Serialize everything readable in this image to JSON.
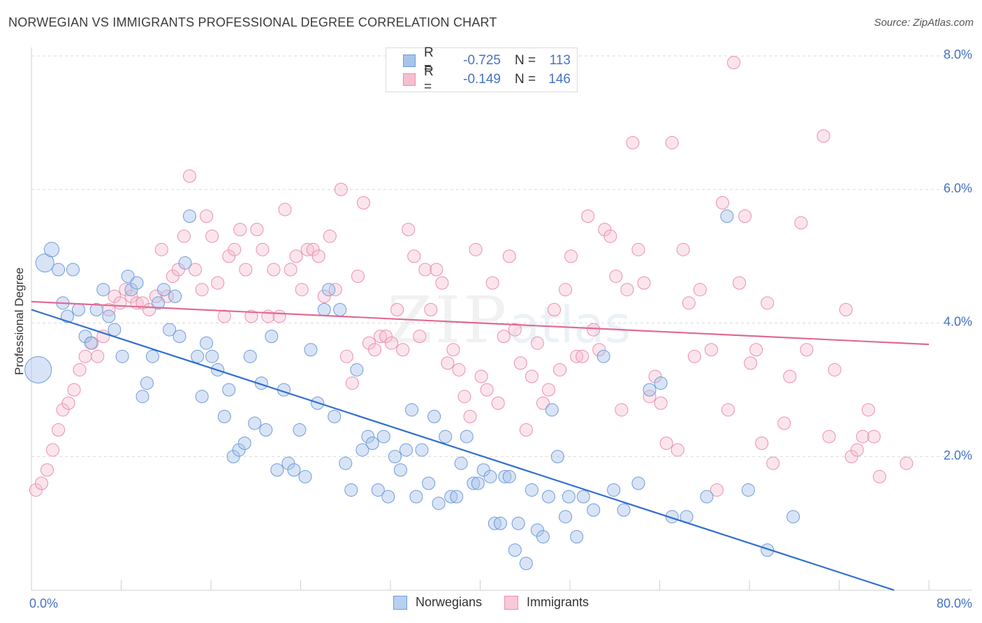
{
  "title": "NORWEGIAN VS IMMIGRANTS PROFESSIONAL DEGREE CORRELATION CHART",
  "source": "Source: ZipAtlas.com",
  "watermark": {
    "main": "ZIP",
    "sub": "atlas"
  },
  "legend_top": [
    {
      "r_label": "R =",
      "r_value": "-0.725",
      "n_label": "N =",
      "n_value": "113",
      "color": "#a9c4eb",
      "border": "#6f9bd8"
    },
    {
      "r_label": "R =",
      "r_value": "-0.149",
      "n_label": "N =",
      "n_value": "146",
      "color": "#f6bfd0",
      "border": "#ea8fae"
    }
  ],
  "legend_bottom": [
    {
      "label": "Norwegians",
      "color": "#b8d0f0",
      "border": "#6f9bd8"
    },
    {
      "label": "Immigrants",
      "color": "#f8c9d8",
      "border": "#ea8fae"
    }
  ],
  "chart_data": {
    "type": "scatter",
    "title": "NORWEGIAN VS IMMIGRANTS PROFESSIONAL DEGREE CORRELATION CHART",
    "xlabel": "",
    "ylabel": "Professional Degree",
    "xlim": [
      0,
      80
    ],
    "ylim": [
      0,
      8
    ],
    "x_tick_labels": [
      {
        "value": 0,
        "label": "0.0%"
      },
      {
        "value": 80,
        "label": "80.0%"
      }
    ],
    "y_tick_labels": [
      {
        "value": 2,
        "label": "2.0%"
      },
      {
        "value": 4,
        "label": "4.0%"
      },
      {
        "value": 6,
        "label": "6.0%"
      },
      {
        "value": 8,
        "label": "8.0%"
      }
    ],
    "series": [
      {
        "name": "Norwegians",
        "color": "#6f9bd8",
        "fill": "rgba(169,196,235,0.45)",
        "trend": {
          "x0": 0,
          "y0": 4.2,
          "x1": 76.9,
          "y1": 0.0,
          "color": "#2f6fd0"
        },
        "points": [
          [
            0.6,
            3.3
          ],
          [
            1.2,
            4.9
          ],
          [
            1.8,
            5.1
          ],
          [
            2.4,
            4.8
          ],
          [
            2.8,
            4.3
          ],
          [
            3.2,
            4.1
          ],
          [
            3.7,
            4.8
          ],
          [
            4.2,
            4.2
          ],
          [
            4.8,
            3.8
          ],
          [
            5.3,
            3.7
          ],
          [
            5.8,
            4.2
          ],
          [
            6.4,
            4.5
          ],
          [
            6.9,
            4.1
          ],
          [
            7.4,
            3.9
          ],
          [
            8.1,
            3.5
          ],
          [
            8.6,
            4.7
          ],
          [
            8.9,
            4.5
          ],
          [
            9.4,
            4.6
          ],
          [
            9.9,
            2.9
          ],
          [
            10.3,
            3.1
          ],
          [
            10.8,
            3.5
          ],
          [
            11.3,
            4.3
          ],
          [
            11.8,
            4.5
          ],
          [
            12.3,
            3.9
          ],
          [
            12.8,
            4.4
          ],
          [
            13.2,
            3.8
          ],
          [
            13.7,
            4.9
          ],
          [
            14.1,
            5.6
          ],
          [
            14.8,
            3.5
          ],
          [
            15.2,
            2.9
          ],
          [
            15.6,
            3.7
          ],
          [
            16.1,
            3.5
          ],
          [
            16.6,
            3.3
          ],
          [
            17.2,
            2.6
          ],
          [
            17.6,
            3.0
          ],
          [
            18.0,
            2.0
          ],
          [
            18.5,
            2.1
          ],
          [
            19.0,
            2.2
          ],
          [
            19.5,
            3.5
          ],
          [
            19.9,
            2.5
          ],
          [
            20.5,
            3.1
          ],
          [
            20.9,
            2.4
          ],
          [
            21.4,
            3.8
          ],
          [
            21.9,
            1.8
          ],
          [
            22.5,
            3.0
          ],
          [
            22.9,
            1.9
          ],
          [
            23.4,
            1.8
          ],
          [
            23.9,
            2.4
          ],
          [
            24.4,
            1.7
          ],
          [
            24.9,
            3.6
          ],
          [
            25.5,
            2.8
          ],
          [
            26.1,
            4.2
          ],
          [
            26.5,
            4.5
          ],
          [
            27.0,
            2.6
          ],
          [
            27.5,
            4.2
          ],
          [
            28.0,
            1.9
          ],
          [
            28.5,
            1.5
          ],
          [
            29.0,
            3.3
          ],
          [
            29.5,
            2.1
          ],
          [
            30.0,
            2.3
          ],
          [
            30.4,
            2.2
          ],
          [
            30.9,
            1.5
          ],
          [
            31.4,
            2.3
          ],
          [
            31.8,
            1.4
          ],
          [
            32.4,
            2.0
          ],
          [
            32.9,
            1.8
          ],
          [
            33.4,
            2.1
          ],
          [
            33.9,
            2.7
          ],
          [
            34.3,
            1.4
          ],
          [
            34.8,
            2.1
          ],
          [
            35.4,
            1.6
          ],
          [
            35.9,
            2.6
          ],
          [
            36.3,
            1.3
          ],
          [
            36.9,
            2.3
          ],
          [
            37.4,
            1.4
          ],
          [
            37.9,
            1.4
          ],
          [
            38.3,
            1.9
          ],
          [
            38.8,
            2.3
          ],
          [
            39.4,
            1.6
          ],
          [
            39.8,
            1.6
          ],
          [
            40.3,
            1.8
          ],
          [
            40.9,
            1.7
          ],
          [
            41.3,
            1.0
          ],
          [
            41.8,
            1.0
          ],
          [
            42.2,
            1.7
          ],
          [
            42.6,
            1.7
          ],
          [
            43.1,
            0.6
          ],
          [
            43.4,
            1.0
          ],
          [
            44.1,
            0.4
          ],
          [
            44.6,
            1.5
          ],
          [
            45.1,
            0.9
          ],
          [
            45.6,
            0.8
          ],
          [
            46.1,
            1.4
          ],
          [
            46.4,
            2.7
          ],
          [
            46.9,
            2.0
          ],
          [
            47.6,
            1.1
          ],
          [
            47.9,
            1.4
          ],
          [
            48.6,
            0.8
          ],
          [
            49.2,
            1.4
          ],
          [
            50.1,
            1.2
          ],
          [
            51.0,
            3.5
          ],
          [
            51.9,
            1.5
          ],
          [
            52.8,
            1.2
          ],
          [
            54.1,
            1.6
          ],
          [
            55.1,
            3.0
          ],
          [
            56.1,
            3.1
          ],
          [
            57.1,
            1.1
          ],
          [
            58.4,
            1.1
          ],
          [
            60.2,
            1.4
          ],
          [
            62.0,
            5.6
          ],
          [
            63.9,
            1.5
          ],
          [
            65.6,
            0.6
          ],
          [
            67.9,
            1.1
          ]
        ]
      },
      {
        "name": "Immigrants",
        "color": "#ea8fae",
        "fill": "rgba(246,191,208,0.40)",
        "trend": {
          "x0": 0,
          "y0": 4.32,
          "x1": 80,
          "y1": 3.68,
          "color": "#e06a92"
        },
        "points": [
          [
            0.4,
            1.5
          ],
          [
            0.9,
            1.6
          ],
          [
            1.4,
            1.8
          ],
          [
            1.9,
            2.1
          ],
          [
            2.4,
            2.4
          ],
          [
            2.8,
            2.7
          ],
          [
            3.3,
            2.8
          ],
          [
            3.8,
            3.0
          ],
          [
            4.3,
            3.3
          ],
          [
            4.8,
            3.5
          ],
          [
            5.4,
            3.7
          ],
          [
            5.9,
            3.5
          ],
          [
            6.4,
            3.8
          ],
          [
            6.9,
            4.2
          ],
          [
            7.4,
            4.4
          ],
          [
            7.9,
            4.3
          ],
          [
            8.4,
            4.5
          ],
          [
            8.9,
            4.4
          ],
          [
            9.4,
            4.3
          ],
          [
            9.9,
            4.3
          ],
          [
            10.5,
            4.2
          ],
          [
            11.1,
            4.4
          ],
          [
            11.6,
            5.1
          ],
          [
            12.1,
            4.4
          ],
          [
            12.6,
            4.7
          ],
          [
            13.1,
            4.8
          ],
          [
            13.6,
            5.3
          ],
          [
            14.1,
            6.2
          ],
          [
            14.6,
            4.8
          ],
          [
            15.2,
            4.5
          ],
          [
            15.6,
            5.6
          ],
          [
            16.1,
            5.3
          ],
          [
            16.6,
            4.6
          ],
          [
            17.2,
            4.1
          ],
          [
            17.6,
            5.0
          ],
          [
            18.1,
            5.1
          ],
          [
            18.6,
            5.4
          ],
          [
            19.1,
            4.8
          ],
          [
            19.6,
            4.1
          ],
          [
            20.1,
            5.4
          ],
          [
            20.6,
            5.1
          ],
          [
            21.1,
            4.1
          ],
          [
            21.6,
            4.8
          ],
          [
            22.1,
            4.1
          ],
          [
            22.6,
            5.7
          ],
          [
            23.1,
            4.8
          ],
          [
            23.6,
            5.0
          ],
          [
            24.1,
            4.5
          ],
          [
            24.6,
            5.1
          ],
          [
            25.1,
            5.1
          ],
          [
            25.6,
            5.0
          ],
          [
            26.1,
            4.4
          ],
          [
            26.6,
            5.3
          ],
          [
            27.1,
            4.5
          ],
          [
            27.6,
            6.0
          ],
          [
            28.1,
            3.5
          ],
          [
            28.6,
            3.1
          ],
          [
            29.1,
            4.7
          ],
          [
            29.6,
            5.8
          ],
          [
            30.1,
            3.7
          ],
          [
            30.6,
            3.6
          ],
          [
            31.1,
            3.8
          ],
          [
            31.6,
            3.8
          ],
          [
            32.1,
            3.7
          ],
          [
            32.6,
            4.2
          ],
          [
            33.1,
            3.6
          ],
          [
            33.6,
            5.4
          ],
          [
            34.1,
            5.0
          ],
          [
            34.6,
            3.8
          ],
          [
            35.1,
            4.8
          ],
          [
            35.6,
            4.2
          ],
          [
            36.1,
            4.8
          ],
          [
            36.6,
            4.6
          ],
          [
            37.1,
            3.4
          ],
          [
            37.6,
            3.6
          ],
          [
            38.1,
            3.3
          ],
          [
            38.6,
            2.9
          ],
          [
            39.1,
            2.6
          ],
          [
            39.6,
            5.1
          ],
          [
            40.1,
            3.2
          ],
          [
            40.6,
            3.0
          ],
          [
            41.1,
            4.6
          ],
          [
            41.6,
            2.8
          ],
          [
            42.1,
            3.8
          ],
          [
            42.6,
            5.0
          ],
          [
            43.1,
            3.9
          ],
          [
            43.6,
            3.4
          ],
          [
            44.1,
            2.4
          ],
          [
            44.6,
            3.2
          ],
          [
            45.1,
            3.7
          ],
          [
            45.6,
            2.8
          ],
          [
            46.1,
            3.0
          ],
          [
            46.6,
            4.2
          ],
          [
            47.1,
            3.3
          ],
          [
            47.6,
            4.5
          ],
          [
            48.1,
            5.0
          ],
          [
            48.6,
            3.5
          ],
          [
            49.1,
            3.5
          ],
          [
            49.6,
            5.6
          ],
          [
            50.1,
            3.9
          ],
          [
            50.6,
            3.6
          ],
          [
            51.1,
            5.4
          ],
          [
            51.6,
            5.3
          ],
          [
            52.1,
            4.7
          ],
          [
            52.6,
            2.7
          ],
          [
            53.1,
            4.5
          ],
          [
            53.6,
            6.7
          ],
          [
            54.1,
            5.1
          ],
          [
            54.6,
            4.6
          ],
          [
            55.1,
            2.9
          ],
          [
            55.6,
            3.2
          ],
          [
            56.1,
            2.8
          ],
          [
            56.6,
            2.2
          ],
          [
            57.1,
            6.7
          ],
          [
            57.6,
            2.1
          ],
          [
            58.1,
            5.1
          ],
          [
            58.6,
            4.3
          ],
          [
            59.1,
            3.5
          ],
          [
            59.6,
            4.5
          ],
          [
            60.6,
            3.6
          ],
          [
            61.1,
            1.5
          ],
          [
            61.6,
            5.8
          ],
          [
            62.1,
            2.7
          ],
          [
            62.6,
            7.9
          ],
          [
            63.1,
            4.6
          ],
          [
            63.6,
            5.6
          ],
          [
            64.1,
            3.4
          ],
          [
            64.6,
            3.6
          ],
          [
            65.1,
            2.2
          ],
          [
            65.6,
            4.3
          ],
          [
            66.1,
            1.9
          ],
          [
            67.1,
            2.5
          ],
          [
            67.6,
            3.2
          ],
          [
            68.6,
            5.5
          ],
          [
            69.1,
            3.6
          ],
          [
            70.6,
            6.8
          ],
          [
            71.1,
            2.3
          ],
          [
            71.6,
            3.3
          ],
          [
            72.6,
            4.2
          ],
          [
            73.1,
            2.0
          ],
          [
            73.6,
            2.1
          ],
          [
            74.1,
            2.3
          ],
          [
            74.6,
            2.7
          ],
          [
            75.1,
            2.3
          ],
          [
            75.6,
            1.7
          ],
          [
            78.0,
            1.9
          ]
        ]
      }
    ]
  }
}
